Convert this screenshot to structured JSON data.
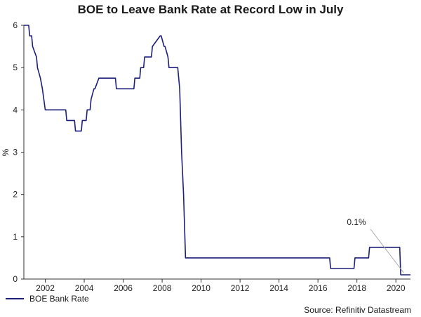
{
  "chart_data": {
    "type": "line",
    "title": "BOE to Leave Bank Rate at Record Low in July",
    "ylabel": "%",
    "xlabel": "",
    "ylim": [
      0,
      6
    ],
    "xlim": [
      2000.9,
      2020.75
    ],
    "x_ticks": [
      2002,
      2004,
      2006,
      2008,
      2010,
      2012,
      2014,
      2016,
      2018,
      2020
    ],
    "y_ticks": [
      0,
      1,
      2,
      3,
      4,
      5,
      6
    ],
    "grid": false,
    "legend_position": "bottom-left",
    "series": [
      {
        "name": "BOE Bank Rate",
        "color": "#1f1f7a",
        "x": [
          2000.9,
          2001.15,
          2001.2,
          2001.3,
          2001.35,
          2001.55,
          2001.6,
          2001.75,
          2001.85,
          2002.0,
          2003.05,
          2003.1,
          2003.5,
          2003.55,
          2003.85,
          2003.9,
          2004.1,
          2004.15,
          2004.3,
          2004.35,
          2004.5,
          2004.55,
          2004.75,
          2004.8,
          2005.6,
          2005.65,
          2006.55,
          2006.6,
          2006.85,
          2006.9,
          2007.05,
          2007.1,
          2007.45,
          2007.5,
          2007.9,
          2007.95,
          2008.1,
          2008.15,
          2008.3,
          2008.35,
          2008.8,
          2008.9,
          2009.0,
          2009.1,
          2009.2,
          2016.6,
          2016.65,
          2017.85,
          2017.9,
          2018.6,
          2018.65,
          2020.2,
          2020.25,
          2020.75
        ],
        "y": [
          6.0,
          6.0,
          5.75,
          5.75,
          5.5,
          5.25,
          5.0,
          4.75,
          4.5,
          4.0,
          4.0,
          3.75,
          3.75,
          3.5,
          3.5,
          3.75,
          3.75,
          4.0,
          4.0,
          4.25,
          4.5,
          4.5,
          4.75,
          4.75,
          4.75,
          4.5,
          4.5,
          4.75,
          4.75,
          5.0,
          5.0,
          5.25,
          5.25,
          5.5,
          5.75,
          5.75,
          5.5,
          5.5,
          5.25,
          5.0,
          5.0,
          4.5,
          3.0,
          2.0,
          0.5,
          0.5,
          0.25,
          0.25,
          0.5,
          0.5,
          0.75,
          0.75,
          0.1,
          0.1
        ]
      }
    ],
    "annotations": [
      {
        "text": "0.1%",
        "target_x": 2020.4,
        "target_y": 0.1
      }
    ],
    "source": "Source: Refinitiv Datastream"
  }
}
